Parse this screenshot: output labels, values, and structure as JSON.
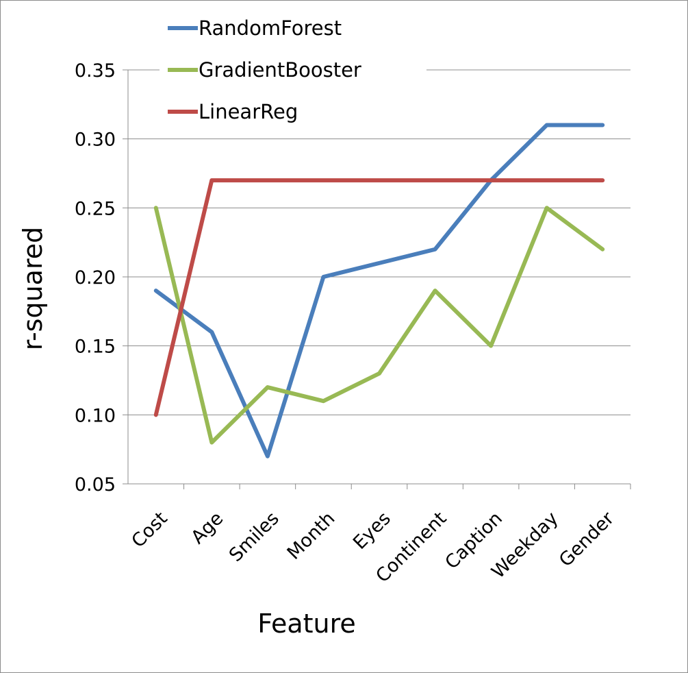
{
  "chart_data": {
    "type": "line",
    "xlabel": "Feature",
    "ylabel": "r-squared",
    "categories": [
      "Cost",
      "Age",
      "Smiles",
      "Month",
      "Eyes",
      "Continent",
      "Caption",
      "Weekday",
      "Gender"
    ],
    "ylim": [
      0.05,
      0.35
    ],
    "yticks": [
      "0.05",
      "0.10",
      "0.15",
      "0.20",
      "0.25",
      "0.30",
      "0.35"
    ],
    "grid": "horizontal",
    "legend_position": "top-left",
    "series": [
      {
        "name": "RandomForest",
        "color": "#4a7ebb",
        "values": [
          0.19,
          0.16,
          0.07,
          0.2,
          0.21,
          0.22,
          0.27,
          0.31,
          0.31
        ]
      },
      {
        "name": "GradientBooster",
        "color": "#98b954",
        "values": [
          0.25,
          0.08,
          0.12,
          0.11,
          0.13,
          0.19,
          0.15,
          0.25,
          0.22
        ]
      },
      {
        "name": "LinearReg",
        "color": "#be4b48",
        "values": [
          0.1,
          0.27,
          0.27,
          0.27,
          0.27,
          0.27,
          0.27,
          0.27,
          0.27
        ]
      }
    ]
  }
}
